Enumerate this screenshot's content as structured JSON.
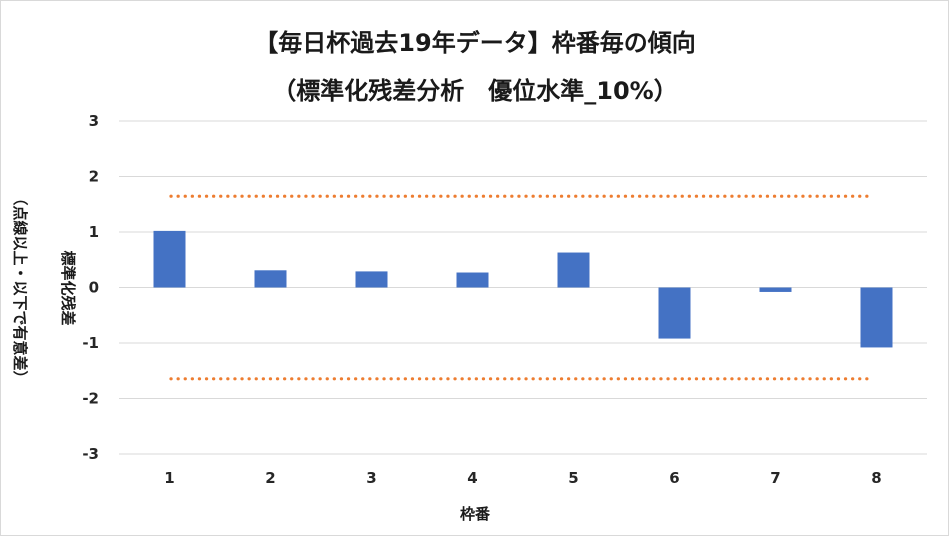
{
  "chart_data": {
    "type": "bar",
    "title": "【毎日杯過去19年データ】枠番毎の傾向",
    "subtitle": "（標準化残差分析　優位水準_10%）",
    "xlabel": "枠番",
    "ylabel_line1": "標準化残差",
    "ylabel_line2": "（点線以上・以下で有意差）",
    "categories": [
      "1",
      "2",
      "3",
      "4",
      "5",
      "6",
      "7",
      "8"
    ],
    "values": [
      1.02,
      0.31,
      0.29,
      0.27,
      0.63,
      -0.92,
      -0.08,
      -1.08
    ],
    "ylim": [
      -3,
      3
    ],
    "yticks": [
      3,
      2,
      1,
      0,
      -1,
      -2,
      -3
    ],
    "threshold_upper": 1.645,
    "threshold_lower": -1.645,
    "grid": true,
    "legend": "none",
    "colors": {
      "bar": "#4472c4",
      "threshold": "#ed7d31",
      "grid": "#d9d9d9"
    }
  }
}
